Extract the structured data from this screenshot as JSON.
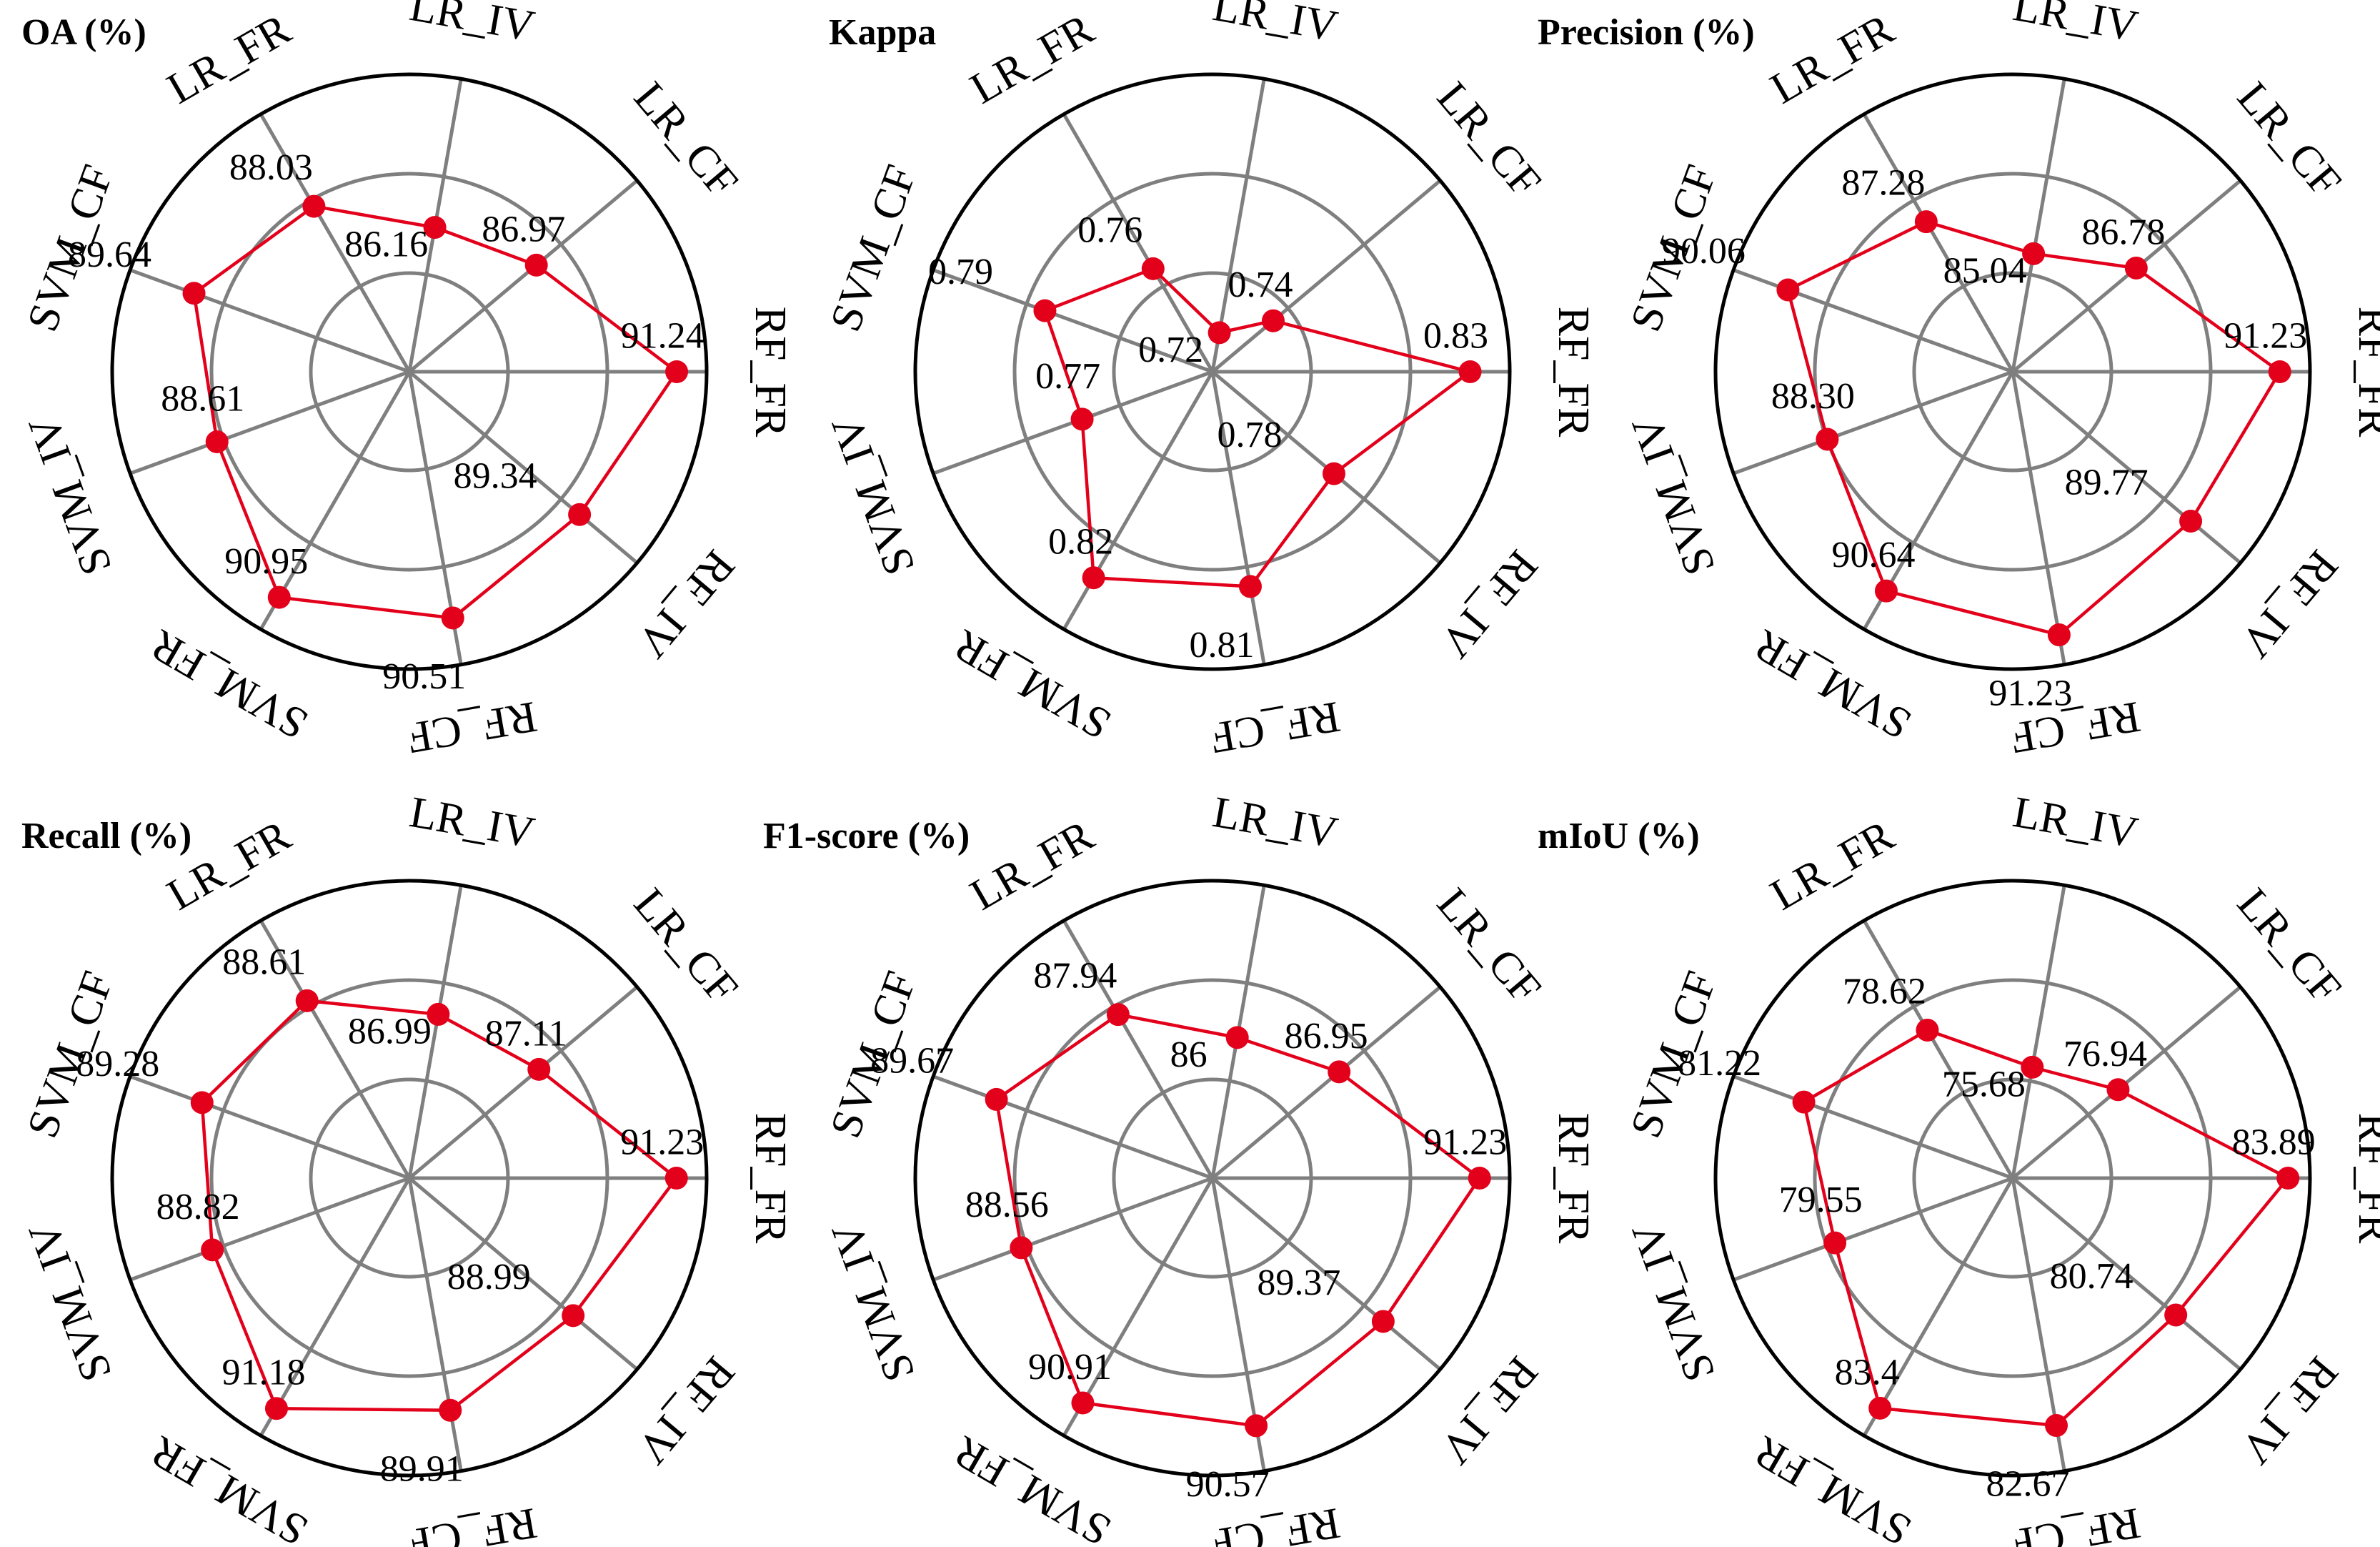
{
  "colors": {
    "series": "#e3001b",
    "grid": "#7f7f7f",
    "outer": "#000000"
  },
  "chart_data": [
    {
      "type": "radar",
      "title": "OA (%)",
      "categories": [
        "RF_FR",
        "LR_CF",
        "LR_IV",
        "LR_FR",
        "SVM_CF",
        "SVM_IV",
        "SVM_FR",
        "RF_CF",
        "RF_IV"
      ],
      "values": [
        91.24,
        86.97,
        86.16,
        88.03,
        89.64,
        88.61,
        90.95,
        90.51,
        89.34
      ],
      "labels": [
        "91.24",
        "86.97",
        "86.16",
        "88.03",
        "89.64",
        "88.61",
        "90.95",
        "90.51",
        "89.34"
      ],
      "rlim": [
        80,
        92.5
      ]
    },
    {
      "type": "radar",
      "title": "Kappa",
      "categories": [
        "RF_FR",
        "LR_CF",
        "LR_IV",
        "LR_FR",
        "SVM_CF",
        "SVM_IV",
        "SVM_FR",
        "RF_CF",
        "RF_IV"
      ],
      "values": [
        0.83,
        0.74,
        0.72,
        0.76,
        0.79,
        0.77,
        0.82,
        0.81,
        0.78
      ],
      "labels": [
        "0.83",
        "0.74",
        "0.72",
        "0.76",
        "0.79",
        "0.77",
        "0.82",
        "0.81",
        "0.78"
      ],
      "rlim": [
        0.7,
        0.85
      ]
    },
    {
      "type": "radar",
      "title": "Precision (%)",
      "categories": [
        "RF_FR",
        "LR_CF",
        "LR_IV",
        "LR_FR",
        "SVM_CF",
        "SVM_IV",
        "SVM_FR",
        "RF_CF",
        "RF_IV"
      ],
      "values": [
        91.23,
        86.78,
        85.04,
        87.28,
        90.06,
        88.3,
        90.64,
        91.23,
        89.77
      ],
      "labels": [
        "91.23",
        "86.78",
        "85.04",
        "87.28",
        "90.06",
        "88.30",
        "90.64",
        "91.23",
        "89.77"
      ],
      "rlim": [
        80,
        92.5
      ]
    },
    {
      "type": "radar",
      "title": "Recall (%)",
      "categories": [
        "RF_FR",
        "LR_CF",
        "LR_IV",
        "LR_FR",
        "SVM_CF",
        "SVM_IV",
        "SVM_FR",
        "RF_CF",
        "RF_IV"
      ],
      "values": [
        91.23,
        87.11,
        86.99,
        88.61,
        89.28,
        88.82,
        91.18,
        89.91,
        88.99
      ],
      "labels": [
        "91.23",
        "87.11",
        "86.99",
        "88.61",
        "89.28",
        "88.82",
        "91.18",
        "89.91",
        "88.99"
      ],
      "rlim": [
        80,
        92.5
      ]
    },
    {
      "type": "radar",
      "title": "F1-score (%)",
      "categories": [
        "RF_FR",
        "LR_CF",
        "LR_IV",
        "LR_FR",
        "SVM_CF",
        "SVM_IV",
        "SVM_FR",
        "RF_CF",
        "RF_IV"
      ],
      "values": [
        91.23,
        86.95,
        86,
        87.94,
        89.67,
        88.56,
        90.91,
        90.57,
        89.37
      ],
      "labels": [
        "91.23",
        "86.95",
        "86",
        "87.94",
        "89.67",
        "88.56",
        "90.91",
        "90.57",
        "89.37"
      ],
      "rlim": [
        80,
        92.5
      ]
    },
    {
      "type": "radar",
      "title": "mIoU (%)",
      "categories": [
        "RF_FR",
        "LR_CF",
        "LR_IV",
        "LR_FR",
        "SVM_CF",
        "SVM_IV",
        "SVM_FR",
        "RF_CF",
        "RF_IV"
      ],
      "values": [
        83.89,
        76.94,
        75.68,
        78.62,
        81.22,
        79.55,
        83.4,
        82.67,
        80.74
      ],
      "labels": [
        "83.89",
        "76.94",
        "75.68",
        "78.62",
        "81.22",
        "79.55",
        "83.4",
        "82.67",
        "80.74"
      ],
      "rlim": [
        70,
        85
      ]
    }
  ]
}
